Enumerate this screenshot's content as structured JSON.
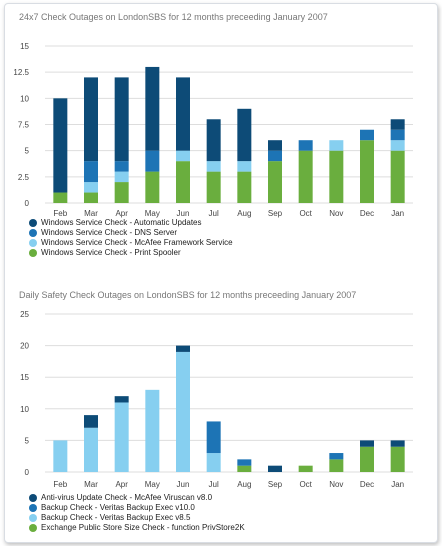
{
  "chart_data": [
    {
      "type": "bar",
      "stacked": true,
      "title": "24x7 Check Outages on LondonSBS for 12 months preceeding January 2007",
      "categories": [
        "Feb",
        "Mar",
        "Apr",
        "May",
        "Jun",
        "Jul",
        "Aug",
        "Sep",
        "Oct",
        "Nov",
        "Dec",
        "Jan"
      ],
      "ylim": [
        0,
        15
      ],
      "yticks": [
        0,
        2.5,
        5,
        7.5,
        10,
        12.5,
        15
      ],
      "grid": true,
      "legend_position": "bottom-left",
      "series": [
        {
          "name": "Windows Service Check - Print Spooler",
          "color": "#6aae3e",
          "values": [
            1,
            1,
            2,
            3,
            4,
            3,
            3,
            4,
            5,
            5,
            6,
            5
          ]
        },
        {
          "name": "Windows Service Check - McAfee Framework Service",
          "color": "#86cff0",
          "values": [
            0,
            1,
            1,
            0,
            1,
            1,
            1,
            0,
            0,
            1,
            0,
            1
          ]
        },
        {
          "name": "Windows Service Check - DNS Server",
          "color": "#1d74b5",
          "values": [
            0,
            2,
            1,
            2,
            0,
            0,
            0,
            1,
            1,
            0,
            1,
            1
          ]
        },
        {
          "name": "Windows Service Check - Automatic Updates",
          "color": "#0d4b77",
          "values": [
            9,
            8,
            8,
            8,
            7,
            4,
            5,
            1,
            0,
            0,
            0,
            1
          ]
        }
      ]
    },
    {
      "type": "bar",
      "stacked": true,
      "title": "Daily Safety Check Outages on LondonSBS for 12 months preceeding January 2007",
      "categories": [
        "Feb",
        "Mar",
        "Apr",
        "May",
        "Jun",
        "Jul",
        "Aug",
        "Sep",
        "Oct",
        "Nov",
        "Dec",
        "Jan"
      ],
      "ylim": [
        0,
        25
      ],
      "yticks": [
        0,
        5,
        10,
        15,
        20,
        25
      ],
      "grid": true,
      "legend_position": "bottom-left",
      "series": [
        {
          "name": "Exchange Public Store Size Check - function PrivStore2K",
          "color": "#6aae3e",
          "values": [
            0,
            0,
            0,
            0,
            0,
            0,
            1,
            0,
            1,
            2,
            4,
            4
          ]
        },
        {
          "name": "Backup Check - Veritas Backup Exec v8.5",
          "color": "#86cff0",
          "values": [
            5,
            7,
            11,
            13,
            19,
            3,
            0,
            0,
            0,
            0,
            0,
            0
          ]
        },
        {
          "name": "Backup Check - Veritas Backup Exec v10.0",
          "color": "#1d74b5",
          "values": [
            0,
            0,
            0,
            0,
            0,
            5,
            1,
            0,
            0,
            1,
            0,
            0
          ]
        },
        {
          "name": "Anti-virus Update Check - McAfee Viruscan v8.0",
          "color": "#0d4b77",
          "values": [
            0,
            2,
            1,
            0,
            1,
            0,
            0,
            1,
            0,
            0,
            1,
            1
          ]
        }
      ]
    }
  ]
}
